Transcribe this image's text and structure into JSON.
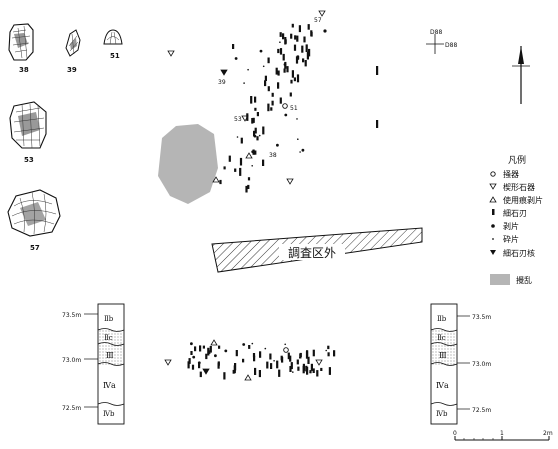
{
  "artifacts": {
    "labels": [
      "38",
      "39",
      "51",
      "53",
      "57"
    ]
  },
  "plan": {
    "excavation_label": "調査区外",
    "point_labels": [
      "57",
      "39",
      "51",
      "53",
      "38"
    ],
    "grid_label_top": "D88",
    "grid_label_right": "D88"
  },
  "legend": {
    "title": "凡例",
    "items": [
      {
        "symbol": "ring-icon",
        "label": "掻器"
      },
      {
        "symbol": "triangle-down-icon",
        "label": "楔形石器"
      },
      {
        "symbol": "triangle-up-icon",
        "label": "使用痕剥片"
      },
      {
        "symbol": "bar-icon",
        "label": "細石刃"
      },
      {
        "symbol": "dot-icon",
        "label": "剥片"
      },
      {
        "symbol": "small-dot-icon",
        "label": "砕片"
      },
      {
        "symbol": "filled-triangle-icon",
        "label": "細石刃核"
      },
      {
        "symbol": "gray-box-icon",
        "label": "攪乱"
      }
    ]
  },
  "section_left": {
    "elevations": [
      "73.5m",
      "73.0m",
      "72.5m"
    ],
    "layers": [
      "Ⅱb",
      "Ⅱc",
      "Ⅲ",
      "Ⅳa",
      "Ⅳb"
    ]
  },
  "section_right": {
    "elevations": [
      "73.5m",
      "73.0m",
      "72.5m"
    ],
    "layers": [
      "Ⅱb",
      "Ⅱc",
      "Ⅲ",
      "Ⅳa",
      "Ⅳb"
    ]
  },
  "scale": {
    "ticks": [
      "0",
      "1",
      "2m"
    ]
  },
  "colors": {
    "ink": "#111111",
    "disturbance": "#b5b5b5",
    "dots": "#d8d8d8"
  }
}
